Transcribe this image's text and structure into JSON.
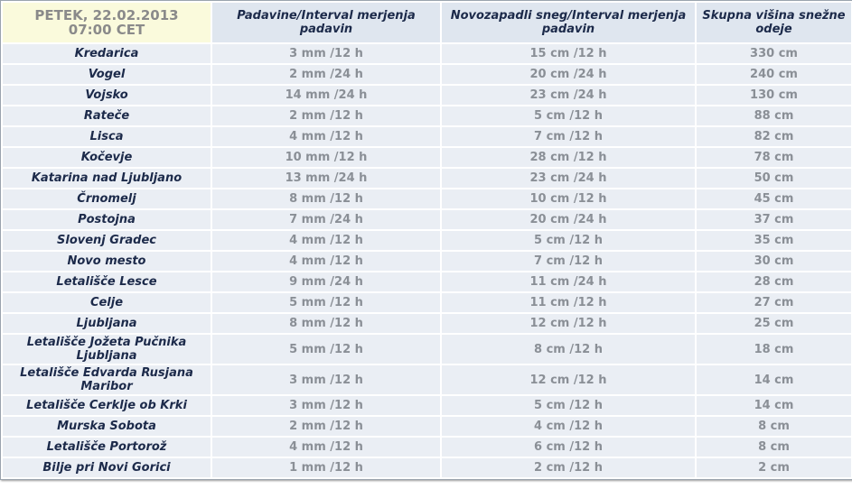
{
  "header": {
    "date": "PETEK, 22.02.2013",
    "time": "07:00 CET",
    "columns": [
      "Padavine/Interval merjenja padavin",
      "Novozapadli sneg/Interval merjenja padavin",
      "Skupna višina snežne odeje"
    ]
  },
  "table": {
    "rows": [
      [
        "Kredarica",
        "3 mm /12 h",
        "15 cm /12 h",
        "330 cm"
      ],
      [
        "Vogel",
        "2 mm /24 h",
        "20 cm /24 h",
        "240 cm"
      ],
      [
        "Vojsko",
        "14 mm /24 h",
        "23 cm /24 h",
        "130 cm"
      ],
      [
        "Rateče",
        "2 mm /12 h",
        "5 cm /12 h",
        "88 cm"
      ],
      [
        "Lisca",
        "4 mm /12 h",
        "7 cm /12 h",
        "82 cm"
      ],
      [
        "Kočevje",
        "10 mm /12 h",
        "28 cm /12 h",
        "78 cm"
      ],
      [
        "Katarina nad Ljubljano",
        "13 mm /24 h",
        "23 cm /24 h",
        "50 cm"
      ],
      [
        "Črnomelj",
        "8 mm /12 h",
        "10 cm /12 h",
        "45 cm"
      ],
      [
        "Postojna",
        "7 mm /24 h",
        "20 cm /24 h",
        "37 cm"
      ],
      [
        "Slovenj Gradec",
        "4 mm /12 h",
        "5 cm /12 h",
        "35 cm"
      ],
      [
        "Novo mesto",
        "4 mm /12 h",
        "7 cm /12 h",
        "30 cm"
      ],
      [
        "Letališče Lesce",
        "9 mm /24 h",
        "11 cm /24 h",
        "28 cm"
      ],
      [
        "Celje",
        "5 mm /12 h",
        "11 cm /12 h",
        "27 cm"
      ],
      [
        "Ljubljana",
        "8 mm /12 h",
        "12 cm /12 h",
        "25 cm"
      ],
      [
        "Letališče Jožeta Pučnika Ljubljana",
        "5 mm /12 h",
        "8 cm /12 h",
        "18 cm"
      ],
      [
        "Letališče Edvarda Rusjana Maribor",
        "3 mm /12 h",
        "12 cm /12 h",
        "14 cm"
      ],
      [
        "Letališče Cerklje ob Krki",
        "3 mm /12 h",
        "5 cm /12 h",
        "14 cm"
      ],
      [
        "Murska Sobota",
        "2 mm /12 h",
        "4 cm /12 h",
        "8 cm"
      ],
      [
        "Letališče Portorož",
        "4 mm /12 h",
        "6 cm /12 h",
        "8 cm"
      ],
      [
        "Bilje pri Novi Gorici",
        "1 mm /12 h",
        "2 cm /12 h",
        "2 cm"
      ]
    ]
  }
}
